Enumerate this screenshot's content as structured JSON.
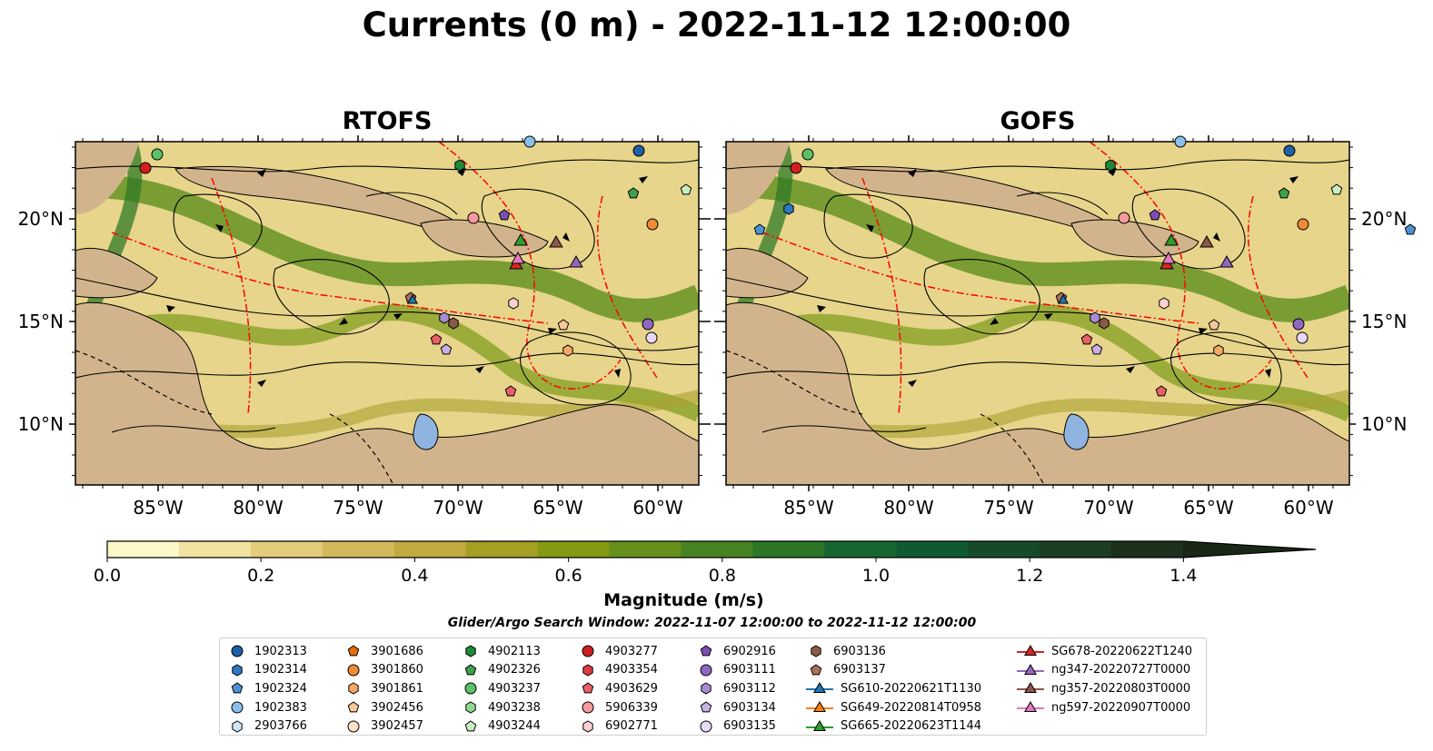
{
  "title": "Currents (0 m) - 2022-11-12 12:00:00",
  "panels": [
    {
      "title": "RTOFS"
    },
    {
      "title": "GOFS"
    }
  ],
  "lon_ticks": [
    "85°W",
    "80°W",
    "75°W",
    "70°W",
    "65°W",
    "60°W"
  ],
  "lat_ticks": [
    "20°N",
    "15°N",
    "10°N"
  ],
  "colorbar": {
    "label": "Magnitude (m/s)",
    "ticks": [
      "0.0",
      "0.2",
      "0.4",
      "0.6",
      "0.8",
      "1.0",
      "1.2",
      "1.4"
    ],
    "colors": [
      "#fdf8c8",
      "#f1e3a0",
      "#e3cd7a",
      "#d4b95a",
      "#c1aa3f",
      "#a3a023",
      "#849a11",
      "#66901a",
      "#468322",
      "#2c7526",
      "#17662f",
      "#0f5a2f",
      "#164b29",
      "#1b3d22",
      "#1c301c",
      "#1a2716"
    ]
  },
  "search_window": "Glider/Argo Search Window: 2022-11-07 12:00:00 to 2022-11-12 12:00:00",
  "legend": {
    "columns": [
      [
        {
          "label": "1902313",
          "marker": "circle",
          "color": "#1f5fa8"
        },
        {
          "label": "1902314",
          "marker": "hexagon",
          "color": "#2f78c0"
        },
        {
          "label": "1902324",
          "marker": "pentagon",
          "color": "#4d93d3"
        },
        {
          "label": "1902383",
          "marker": "circle",
          "color": "#8cc0ea"
        },
        {
          "label": "2903766",
          "marker": "hexagon",
          "color": "#cfe6f8"
        }
      ],
      [
        {
          "label": "3901686",
          "marker": "pentagon",
          "color": "#e86b0c"
        },
        {
          "label": "3901860",
          "marker": "circle",
          "color": "#f08a36"
        },
        {
          "label": "3901861",
          "marker": "hexagon",
          "color": "#f5a765"
        },
        {
          "label": "3902456",
          "marker": "pentagon",
          "color": "#f8c79b"
        },
        {
          "label": "3902457",
          "marker": "circle",
          "color": "#fbe1c6"
        }
      ],
      [
        {
          "label": "4902113",
          "marker": "hexagon",
          "color": "#1f8a35"
        },
        {
          "label": "4902326",
          "marker": "pentagon",
          "color": "#3ea14c"
        },
        {
          "label": "4903237",
          "marker": "circle",
          "color": "#5cc168"
        },
        {
          "label": "4903238",
          "marker": "hexagon",
          "color": "#90d890"
        },
        {
          "label": "4903244",
          "marker": "pentagon",
          "color": "#c8efc2"
        }
      ],
      [
        {
          "label": "4903277",
          "marker": "circle",
          "color": "#d11f1f"
        },
        {
          "label": "4903354",
          "marker": "hexagon",
          "color": "#dd3a3f"
        },
        {
          "label": "4903629",
          "marker": "pentagon",
          "color": "#ea6067"
        },
        {
          "label": "5906339",
          "marker": "circle",
          "color": "#f59a9c"
        },
        {
          "label": "6902771",
          "marker": "hexagon",
          "color": "#fbd1d1"
        }
      ],
      [
        {
          "label": "6902916",
          "marker": "pentagon",
          "color": "#7a4fb3"
        },
        {
          "label": "6903111",
          "marker": "circle",
          "color": "#9066c4"
        },
        {
          "label": "6903112",
          "marker": "hexagon",
          "color": "#a98ad4"
        },
        {
          "label": "6903134",
          "marker": "pentagon",
          "color": "#c7b0e6"
        },
        {
          "label": "6903135",
          "marker": "circle",
          "color": "#e6d8f7"
        }
      ],
      [
        {
          "label": "6903136",
          "marker": "hexagon",
          "color": "#8a5a48"
        },
        {
          "label": "6903137",
          "marker": "pentagon",
          "color": "#a5735f"
        },
        {
          "label": "SG610-20220621T1130",
          "marker": "line-triangle",
          "color": "#1f77b4"
        },
        {
          "label": "SG649-20220814T0958",
          "marker": "line-triangle",
          "color": "#ff7f0e"
        },
        {
          "label": "SG665-20220623T1144",
          "marker": "line-triangle",
          "color": "#2ca02c"
        }
      ],
      [
        {
          "label": "SG678-20220622T1240",
          "marker": "line-triangle",
          "color": "#d62728"
        },
        {
          "label": "ng347-20220727T0000",
          "marker": "line-triangle",
          "color": "#9467bd"
        },
        {
          "label": "ng357-20220803T0000",
          "marker": "line-triangle",
          "color": "#8c564b"
        },
        {
          "label": "ng597-20220907T0000",
          "marker": "line-triangle",
          "color": "#e377c2"
        }
      ]
    ]
  },
  "colors": {
    "land": "#d2b48c",
    "lake": "#8fb4e0",
    "eez_line": "#ff0000",
    "streamline": "#000000"
  }
}
